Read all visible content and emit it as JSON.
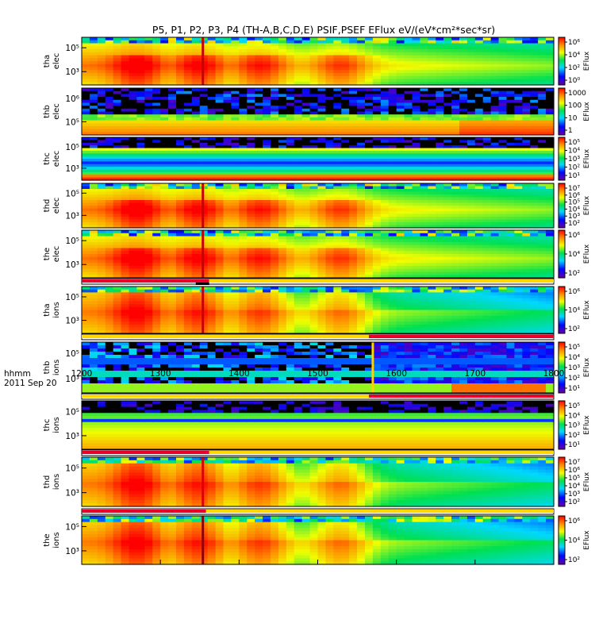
{
  "title": "P5, P1, P2, P3, P4 (TH-A,B,C,D,E) PSIF,PSEF EFlux eV/(eV*cm²*sec*sr)",
  "footer": {
    "time_label": "hhmm",
    "date_label": "2011 Sep 20"
  },
  "chart_data": {
    "type": "heatmap",
    "title": "P5, P1, P2, P3, P4 (TH-A,B,C,D,E) PSIF,PSEF EFlux eV/(eV*cm²*sec*sr)",
    "xlabel": "hhmm",
    "x_ticks": [
      "1200",
      "1300",
      "1400",
      "1500",
      "1600",
      "1700",
      "1800"
    ],
    "xlim": [
      "1200",
      "1800"
    ],
    "colorscale": "rainbow (purple-blue-cyan-green-yellow-red), log EFlux",
    "panels": [
      {
        "probe": "tha",
        "species": "elec",
        "y_ticks": [
          "10⁵",
          "10³"
        ],
        "cb_label": "EFlux",
        "cb_ticks": [
          "10⁶",
          "10⁴",
          "10²",
          "10⁰"
        ],
        "marker_time": 1354,
        "marker_color": "#c80000"
      },
      {
        "probe": "thb",
        "species": "elec",
        "y_ticks": [
          "10⁶",
          "10⁵"
        ],
        "cb_label": "EFlux",
        "cb_ticks": [
          "1000",
          "100",
          "10",
          "1"
        ],
        "marker_time": null,
        "marker_color": ""
      },
      {
        "probe": "thc",
        "species": "elec",
        "y_ticks": [
          "10⁵",
          "10³"
        ],
        "cb_label": "EFlux",
        "cb_ticks": [
          "10⁵",
          "10⁴",
          "10³",
          "10²",
          "10¹"
        ],
        "marker_time": null,
        "marker_color": ""
      },
      {
        "probe": "thd",
        "species": "elec",
        "y_ticks": [
          "10⁵",
          "10³"
        ],
        "cb_label": "EFlux",
        "cb_ticks": [
          "10⁷",
          "10⁶",
          "10⁵",
          "10⁴",
          "10³",
          "10²"
        ],
        "marker_time": 1354,
        "marker_color": "#c80000"
      },
      {
        "probe": "the",
        "species": "elec",
        "y_ticks": [
          "10⁵",
          "10³"
        ],
        "cb_label": "EFlux",
        "cb_ticks": [
          "10⁶",
          "10⁴",
          "10²"
        ],
        "marker_time": 1354,
        "marker_color": "#c80000"
      },
      {
        "probe": "tha",
        "species": "ions",
        "y_ticks": [
          "10⁵",
          "10³"
        ],
        "cb_label": "EFlux",
        "cb_ticks": [
          "10⁶",
          "10⁴",
          "10²"
        ],
        "marker_time": 1354,
        "marker_color": "#c80000"
      },
      {
        "probe": "thb",
        "species": "ions",
        "y_ticks": [
          "10⁵",
          "10³"
        ],
        "cb_label": "EFlux",
        "cb_ticks": [
          "10⁵",
          "10⁴",
          "10³",
          "10²",
          "10¹"
        ],
        "marker_time": 1570,
        "marker_color": "#ffd200"
      },
      {
        "probe": "thc",
        "species": "ions",
        "y_ticks": [
          "10⁵",
          "10³"
        ],
        "cb_label": "EFlux",
        "cb_ticks": [
          "10⁵",
          "10⁴",
          "10³",
          "10²",
          "10¹"
        ],
        "marker_time": null,
        "marker_color": ""
      },
      {
        "probe": "thd",
        "species": "ions",
        "y_ticks": [
          "10⁵",
          "10³"
        ],
        "cb_label": "EFlux",
        "cb_ticks": [
          "10⁷",
          "10⁶",
          "10⁵",
          "10⁴",
          "10³",
          "10²"
        ],
        "marker_time": 1354,
        "marker_color": "#e00000"
      },
      {
        "probe": "the",
        "species": "ions",
        "y_ticks": [
          "10⁵",
          "10³"
        ],
        "cb_label": "EFlux",
        "cb_ticks": [
          "10⁶",
          "10⁴",
          "10²"
        ],
        "marker_time": 1354,
        "marker_color": "#900000"
      }
    ],
    "status_bars": [
      {
        "segments": [
          {
            "start": 1200,
            "end": 1362,
            "color": "#e8002a"
          },
          {
            "start": 1362,
            "end": 1800,
            "color": "#ffd800"
          }
        ],
        "extra": {
          "start": 1345,
          "end": 1362,
          "color": "#000000"
        }
      },
      {
        "segments": [
          {
            "start": 1200,
            "end": 1565,
            "color": "#ffd800"
          },
          {
            "start": 1565,
            "end": 1800,
            "color": "#e8002a"
          }
        ]
      },
      {
        "segments": [
          {
            "start": 1200,
            "end": 1565,
            "color": "#ffd800"
          },
          {
            "start": 1565,
            "end": 1800,
            "color": "#e8002a"
          }
        ]
      },
      {
        "segments": [
          {
            "start": 1200,
            "end": 1362,
            "color": "#e8002a"
          },
          {
            "start": 1362,
            "end": 1800,
            "color": "#ffd800"
          }
        ]
      },
      {
        "segments": [
          {
            "start": 1200,
            "end": 1358,
            "color": "#e8002a"
          },
          {
            "start": 1358,
            "end": 1800,
            "color": "#ffd800"
          }
        ]
      }
    ]
  }
}
